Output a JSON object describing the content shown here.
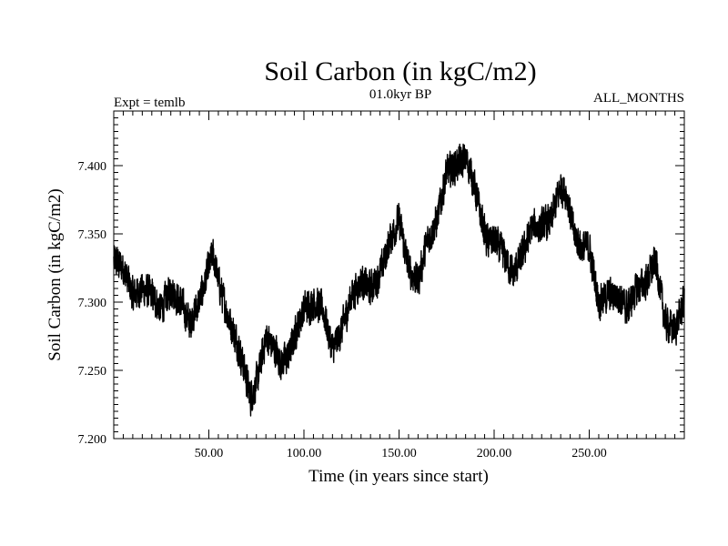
{
  "chart_data": {
    "type": "line",
    "title": "Soil Carbon (in kgC/m2)",
    "subtitle": "01.0kyr BP",
    "experiment": "Expt = temlb",
    "season": "ALL_MONTHS",
    "xlabel": "Time (in years since start)",
    "ylabel": "Soil Carbon (in kgC/m2)",
    "xlim": [
      0,
      300
    ],
    "ylim": [
      7.2,
      7.44
    ],
    "xticks": [
      50,
      100,
      150,
      200,
      250
    ],
    "xtick_labels": [
      "50.00",
      "100.00",
      "150.00",
      "200.00",
      "250.00"
    ],
    "yticks": [
      7.2,
      7.25,
      7.3,
      7.35,
      7.4
    ],
    "ytick_labels": [
      "7.200",
      "7.250",
      "7.300",
      "7.350",
      "7.400"
    ],
    "series": [
      {
        "name": "Soil Carbon",
        "color": "#000000",
        "note": "monthly series with roughly ±0.01 kgC/m2 high-frequency noise around this smoothed trend",
        "x": [
          0,
          5,
          10,
          15,
          20,
          25,
          30,
          35,
          40,
          45,
          48,
          52,
          56,
          60,
          65,
          68,
          72,
          76,
          80,
          85,
          88,
          92,
          96,
          100,
          105,
          110,
          115,
          120,
          125,
          130,
          135,
          140,
          145,
          150,
          155,
          160,
          165,
          170,
          175,
          180,
          185,
          188,
          192,
          196,
          200,
          205,
          210,
          215,
          220,
          225,
          230,
          235,
          238,
          242,
          246,
          250,
          255,
          260,
          265,
          270,
          275,
          280,
          285,
          290,
          295,
          300
        ],
        "values": [
          7.33,
          7.325,
          7.305,
          7.31,
          7.305,
          7.295,
          7.31,
          7.3,
          7.285,
          7.3,
          7.315,
          7.335,
          7.31,
          7.29,
          7.27,
          7.255,
          7.23,
          7.245,
          7.275,
          7.265,
          7.255,
          7.26,
          7.28,
          7.295,
          7.3,
          7.295,
          7.265,
          7.28,
          7.305,
          7.315,
          7.31,
          7.32,
          7.345,
          7.36,
          7.325,
          7.315,
          7.345,
          7.36,
          7.395,
          7.4,
          7.405,
          7.395,
          7.37,
          7.345,
          7.345,
          7.335,
          7.32,
          7.335,
          7.355,
          7.355,
          7.36,
          7.385,
          7.38,
          7.35,
          7.34,
          7.34,
          7.3,
          7.305,
          7.305,
          7.295,
          7.31,
          7.315,
          7.33,
          7.285,
          7.28,
          7.3
        ]
      }
    ]
  }
}
